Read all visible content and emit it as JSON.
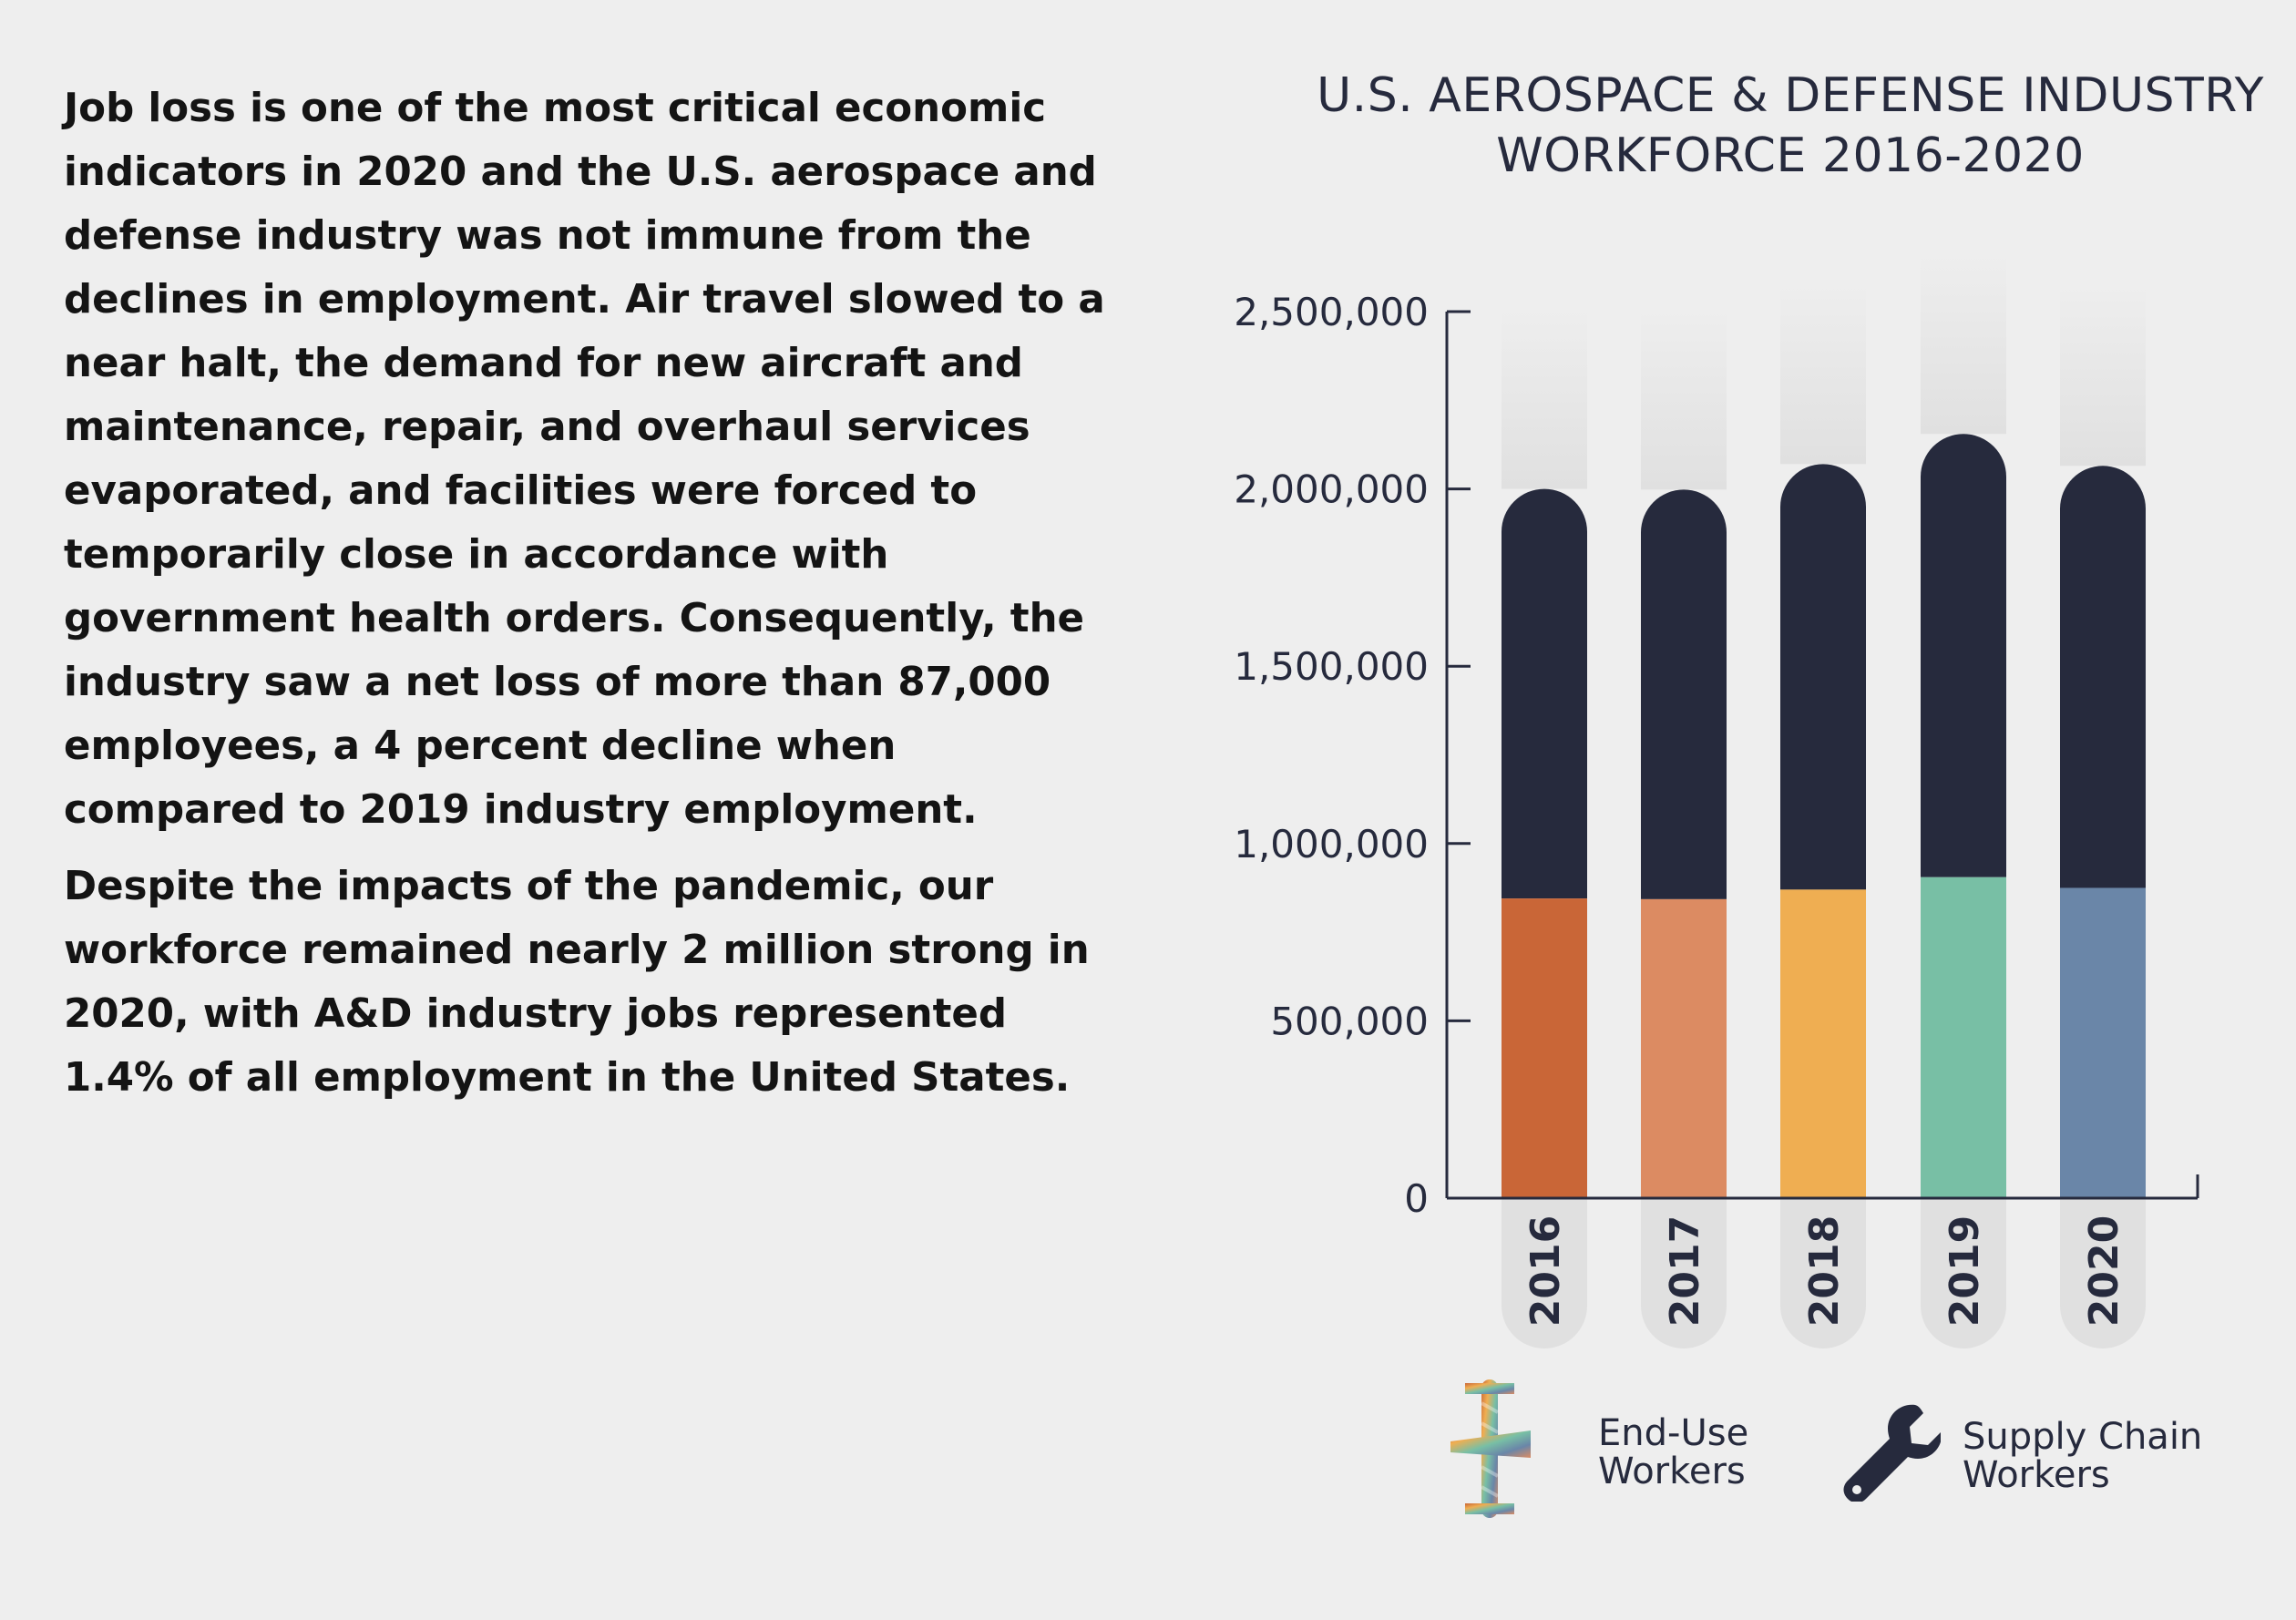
{
  "text": {
    "paragraphs": [
      "Job loss is one of the most critical economic indicators in 2020 and the U.S. aerospace and defense industry was not immune from the declines in employment. Air travel slowed to a near halt, the demand for new aircraft and maintenance, repair, and overhaul services evaporated, and facilities were forced to temporarily close in accordance with government health orders. Consequently, the industry saw a net loss of more than 87,000 employees, a 4 percent decline when compared to 2019 industry employment.",
      "Despite the impacts of the pandemic, our workforce remained nearly 2 million strong in 2020, with A&D industry jobs represented 1.4% of all employment in the United States."
    ]
  },
  "chart_data": {
    "type": "bar",
    "stacked": true,
    "title_line1": "U.S. AEROSPACE & DEFENSE INDUSTRY",
    "title_line2": "WORKFORCE 2016-2020",
    "categories": [
      "2016",
      "2017",
      "2018",
      "2019",
      "2020"
    ],
    "series": [
      {
        "name": "End-Use Workers",
        "values": [
          845000,
          843000,
          870000,
          905000,
          875000
        ]
      },
      {
        "name": "Supply Chain Workers",
        "values": [
          1155000,
          1155000,
          1200000,
          1250000,
          1190000
        ]
      }
    ],
    "yticks": [
      0,
      500000,
      1000000,
      1500000,
      2000000,
      2500000
    ],
    "ytick_labels": [
      "0",
      "500,000",
      "1,000,000",
      "1,500,000",
      "2,000,000",
      "2,500,000"
    ],
    "ylim": [
      0,
      2500000
    ],
    "end_use_colors": [
      "#c96637",
      "#dc8b62",
      "#efae52",
      "#78bfa5",
      "#6a86a8"
    ],
    "supply_chain_color": "#262a3d",
    "legend": {
      "end_use_label": "End-Use\nWorkers",
      "supply_chain_label": "Supply Chain\nWorkers",
      "position": "bottom"
    }
  },
  "icons": {
    "end_use": "airplane-icon",
    "supply_chain": "wrench-icon"
  }
}
